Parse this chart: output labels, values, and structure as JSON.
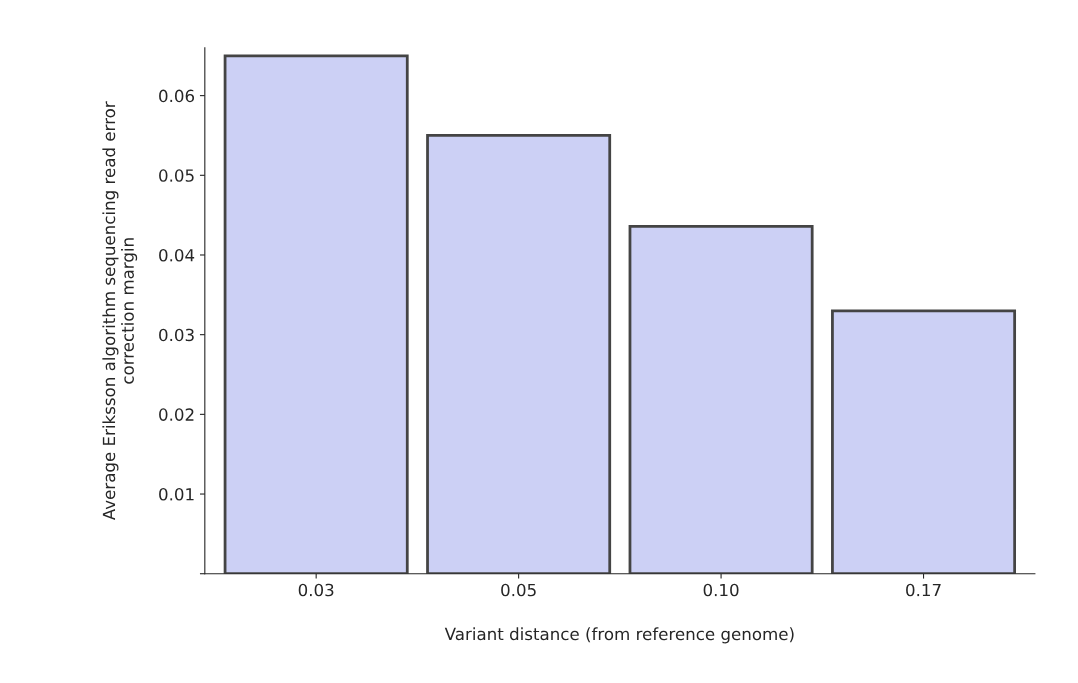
{
  "chart_data": {
    "type": "bar",
    "xlabel": "Variant distance (from reference genome)",
    "ylabel": "Average Eriksson algorithm sequencing read error\ncorrection margin",
    "categories": [
      "0.03",
      "0.05",
      "0.10",
      "0.17"
    ],
    "values": [
      0.065,
      0.055,
      0.0436,
      0.033
    ],
    "color": "#ccd0f5",
    "ylim": [
      0,
      0.066
    ],
    "yticks": [
      {
        "value": 0,
        "label": null
      },
      0.01,
      0.02,
      0.03,
      0.04,
      0.05,
      0.06
    ],
    "grid": false,
    "legend": false
  }
}
